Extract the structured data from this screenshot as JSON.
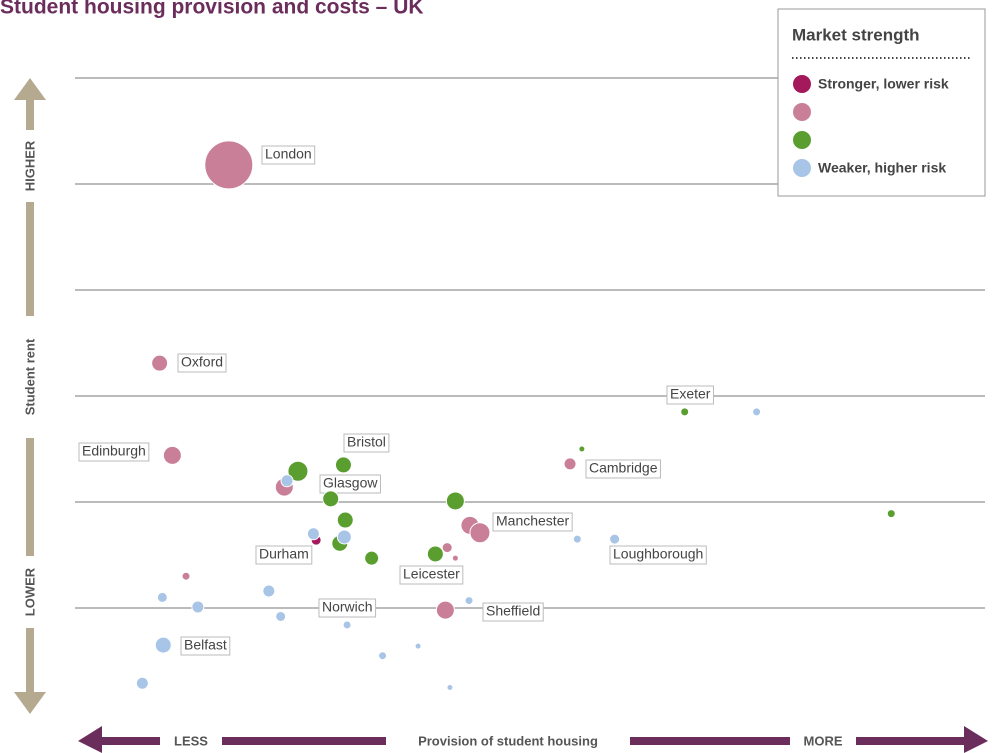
{
  "chart_data": {
    "type": "bubble",
    "title": "Student housing provision and costs – UK",
    "x_label": "Provision of student housing",
    "x_low": "LESS",
    "x_high": "MORE",
    "y_label": "Student rent",
    "y_high": "HIGHER",
    "y_low": "LOWER",
    "legend_title": "Market strength",
    "xlim": [
      0,
      10
    ],
    "ylim": [
      0,
      6
    ],
    "yticks": [
      1,
      2,
      3,
      4,
      5,
      6
    ],
    "grid": true,
    "series": [
      {
        "name": "Stronger, lower risk",
        "color": "#a3195b",
        "x": [
          2.65
        ],
        "values": [
          1.64
        ],
        "sizes": [
          5
        ],
        "labels": [
          "Durham"
        ]
      },
      {
        "color": "#c97f98",
        "x": [
          1.69,
          0.93,
          1.07,
          2.3,
          5.44,
          4.34,
          4.45,
          4.09,
          4.18,
          4.07,
          1.22
        ],
        "values": [
          5.18,
          3.31,
          2.44,
          2.14,
          2.36,
          1.78,
          1.71,
          1.57,
          1.47,
          0.98,
          1.3
        ],
        "sizes": [
          24,
          8,
          9,
          9,
          6,
          9,
          10,
          5,
          3,
          9,
          4
        ],
        "labels": [
          "London",
          "Oxford",
          "Edinburgh",
          null,
          "Cambridge",
          "Manchester",
          null,
          null,
          null,
          "Sheffield",
          null
        ]
      },
      {
        "color": "#5a9e2f",
        "x": [
          2.45,
          2.95,
          2.81,
          2.97,
          2.91,
          3.26,
          3.96,
          4.18,
          5.57,
          6.7,
          8.97
        ],
        "values": [
          2.29,
          2.35,
          2.03,
          1.83,
          1.61,
          1.47,
          1.51,
          2.01,
          2.5,
          2.85,
          1.89
        ],
        "sizes": [
          10,
          8,
          8,
          8,
          8,
          7,
          8,
          9,
          3,
          4,
          4
        ],
        "labels": [
          null,
          "Bristol",
          "Glasgow",
          null,
          null,
          null,
          "Leicester",
          null,
          null,
          "Exeter",
          null
        ]
      },
      {
        "name": "Weaker, higher risk",
        "color": "#a8c4e6",
        "x": [
          2.33,
          2.62,
          2.96,
          5.52,
          5.93,
          7.49,
          0.96,
          1.35,
          2.13,
          2.26,
          2.99,
          3.38,
          3.77,
          4.33,
          4.12,
          0.97,
          0.74
        ],
        "values": [
          2.2,
          1.7,
          1.67,
          1.65,
          1.65,
          2.85,
          1.1,
          1.01,
          1.16,
          0.92,
          0.84,
          0.55,
          0.64,
          1.07,
          0.25,
          0.65,
          0.29
        ],
        "sizes": [
          6,
          6,
          7,
          4,
          5,
          4,
          5,
          6,
          6,
          5,
          4,
          4,
          3,
          4,
          3,
          8,
          6
        ],
        "labels": [
          null,
          null,
          null,
          null,
          "Loughborough",
          null,
          null,
          null,
          null,
          null,
          "Norwich",
          null,
          null,
          null,
          null,
          "Belfast",
          null
        ]
      }
    ]
  }
}
